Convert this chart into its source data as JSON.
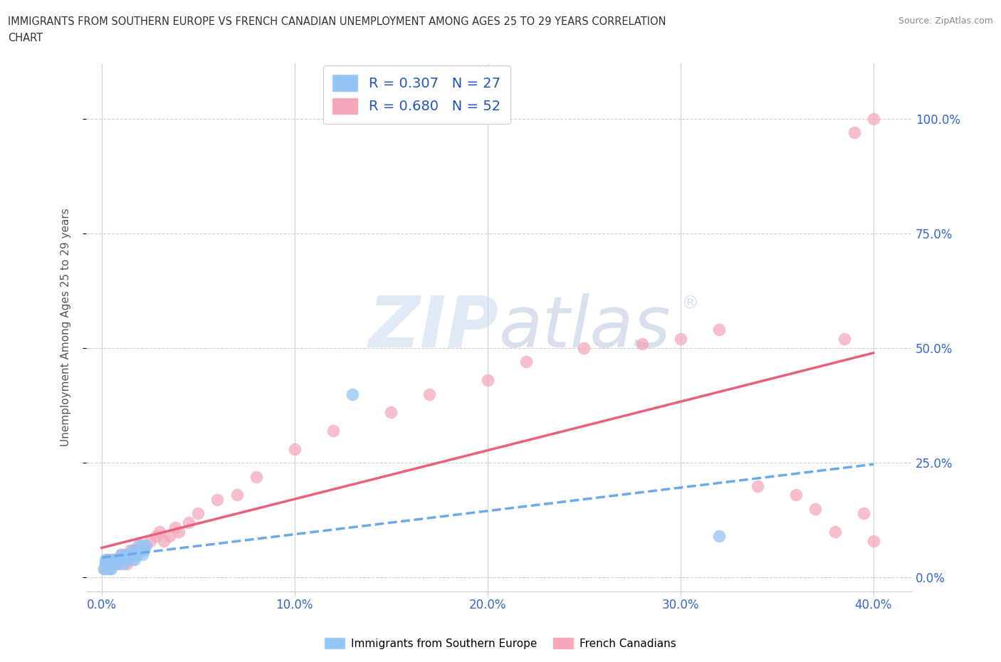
{
  "title_line1": "IMMIGRANTS FROM SOUTHERN EUROPE VS FRENCH CANADIAN UNEMPLOYMENT AMONG AGES 25 TO 29 YEARS CORRELATION",
  "title_line2": "CHART",
  "source": "Source: ZipAtlas.com",
  "xlabel_vals": [
    0.0,
    0.1,
    0.2,
    0.3,
    0.4
  ],
  "xlabel_labels": [
    "0.0%",
    "10.0%",
    "20.0%",
    "30.0%",
    "40.0%"
  ],
  "ylabel_vals": [
    0.0,
    0.25,
    0.5,
    0.75,
    1.0
  ],
  "ylabel_labels": [
    "0.0%",
    "25.0%",
    "50.0%",
    "75.0%",
    "100.0%"
  ],
  "xlim": [
    -0.008,
    0.42
  ],
  "ylim": [
    -0.03,
    1.12
  ],
  "legend_label1": "Immigrants from Southern Europe",
  "legend_label2": "French Canadians",
  "r1": 0.307,
  "n1": 27,
  "r2": 0.68,
  "n2": 52,
  "color1": "#92c5f5",
  "color2": "#f5a8bc",
  "trendline_color1": "#6aaae8",
  "trendline_color2": "#e8607a",
  "blue_text_color": "#2255bb",
  "blue_axis_color": "#3366cc",
  "watermark_color": "#d5e8f8",
  "scatter1_x": [
    0.001,
    0.002,
    0.002,
    0.003,
    0.004,
    0.005,
    0.005,
    0.006,
    0.007,
    0.008,
    0.009,
    0.01,
    0.011,
    0.012,
    0.013,
    0.014,
    0.015,
    0.016,
    0.017,
    0.018,
    0.019,
    0.02,
    0.021,
    0.022,
    0.023,
    0.13,
    0.32
  ],
  "scatter1_y": [
    0.02,
    0.03,
    0.04,
    0.02,
    0.03,
    0.04,
    0.02,
    0.03,
    0.04,
    0.03,
    0.04,
    0.05,
    0.03,
    0.04,
    0.05,
    0.04,
    0.05,
    0.06,
    0.04,
    0.05,
    0.06,
    0.07,
    0.05,
    0.06,
    0.07,
    0.4,
    0.09
  ],
  "scatter2_x": [
    0.001,
    0.002,
    0.003,
    0.004,
    0.005,
    0.006,
    0.007,
    0.008,
    0.009,
    0.01,
    0.011,
    0.012,
    0.013,
    0.014,
    0.015,
    0.016,
    0.017,
    0.018,
    0.019,
    0.02,
    0.022,
    0.025,
    0.028,
    0.03,
    0.032,
    0.035,
    0.038,
    0.04,
    0.045,
    0.05,
    0.06,
    0.07,
    0.08,
    0.1,
    0.12,
    0.15,
    0.17,
    0.2,
    0.22,
    0.25,
    0.28,
    0.3,
    0.32,
    0.34,
    0.36,
    0.37,
    0.38,
    0.385,
    0.39,
    0.395,
    0.4,
    0.4
  ],
  "scatter2_y": [
    0.02,
    0.03,
    0.04,
    0.02,
    0.03,
    0.04,
    0.03,
    0.04,
    0.03,
    0.05,
    0.04,
    0.05,
    0.03,
    0.05,
    0.06,
    0.04,
    0.06,
    0.05,
    0.07,
    0.06,
    0.07,
    0.08,
    0.09,
    0.1,
    0.08,
    0.09,
    0.11,
    0.1,
    0.12,
    0.14,
    0.17,
    0.18,
    0.22,
    0.28,
    0.32,
    0.36,
    0.4,
    0.43,
    0.47,
    0.5,
    0.51,
    0.52,
    0.54,
    0.2,
    0.18,
    0.15,
    0.1,
    0.52,
    0.97,
    0.14,
    1.0,
    0.08
  ]
}
